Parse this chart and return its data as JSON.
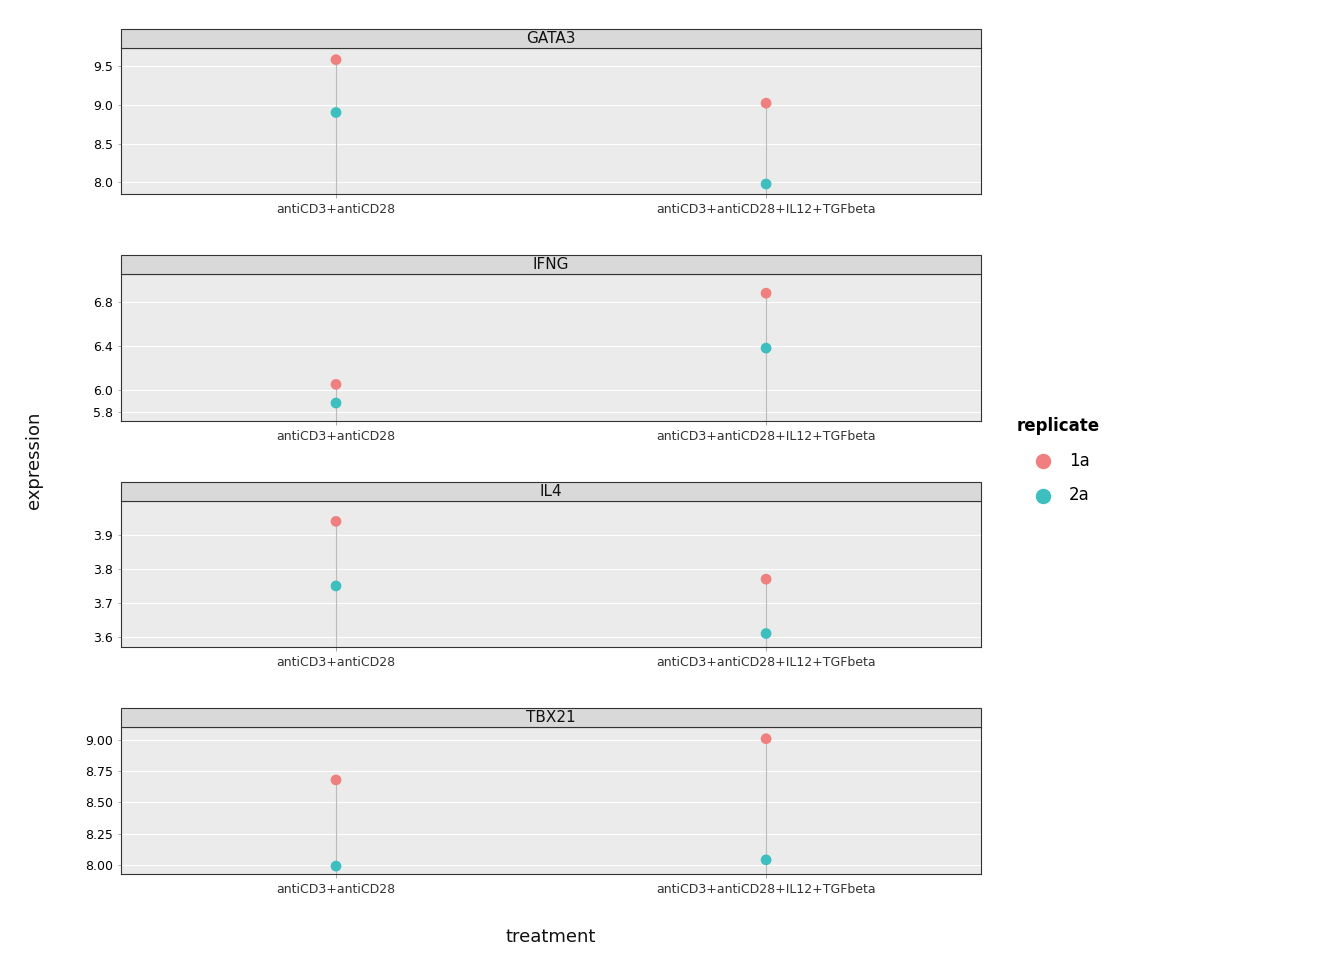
{
  "genes": [
    "GATA3",
    "IFNG",
    "IL4",
    "TBX21"
  ],
  "treatments": [
    "antiCD3+antiCD28",
    "antiCD3+antiCD28+IL12+TGFbeta"
  ],
  "color_1a": "#F08080",
  "color_2a": "#3DBFBF",
  "ylabel": "expression",
  "xlabel": "treatment",
  "legend_title": "replicate",
  "legend_labels": [
    "1a",
    "2a"
  ],
  "data": {
    "GATA3": {
      "1a": [
        9.58,
        9.02
      ],
      "2a": [
        8.9,
        7.98
      ]
    },
    "IFNG": {
      "1a": [
        6.05,
        6.88
      ],
      "2a": [
        5.88,
        6.38
      ]
    },
    "IL4": {
      "1a": [
        3.94,
        3.77
      ],
      "2a": [
        3.75,
        3.61
      ]
    },
    "TBX21": {
      "1a": [
        8.68,
        9.01
      ],
      "2a": [
        7.99,
        8.04
      ]
    }
  },
  "yticks": {
    "GATA3": [
      8.0,
      8.5,
      9.0,
      9.5
    ],
    "IFNG": [
      5.8,
      6.0,
      6.4,
      6.8
    ],
    "IL4": [
      3.6,
      3.7,
      3.8,
      3.9
    ],
    "TBX21": [
      8.0,
      8.25,
      8.5,
      8.75,
      9.0
    ]
  },
  "ylim": {
    "GATA3": [
      7.85,
      9.73
    ],
    "IFNG": [
      5.72,
      7.05
    ],
    "IL4": [
      3.57,
      4.0
    ],
    "TBX21": [
      7.93,
      9.1
    ]
  },
  "panel_bg": "#EBEBEB",
  "fig_bg": "#FFFFFF",
  "grid_color": "#FFFFFF",
  "strip_bg": "#D9D9D9",
  "strip_border": "#333333",
  "dot_size": 60,
  "vline_color": "#BBBBBB",
  "vline_lw": 0.8,
  "axis_text_size": 9,
  "axis_label_size": 13,
  "strip_text_size": 11,
  "legend_title_size": 12,
  "legend_text_size": 12
}
